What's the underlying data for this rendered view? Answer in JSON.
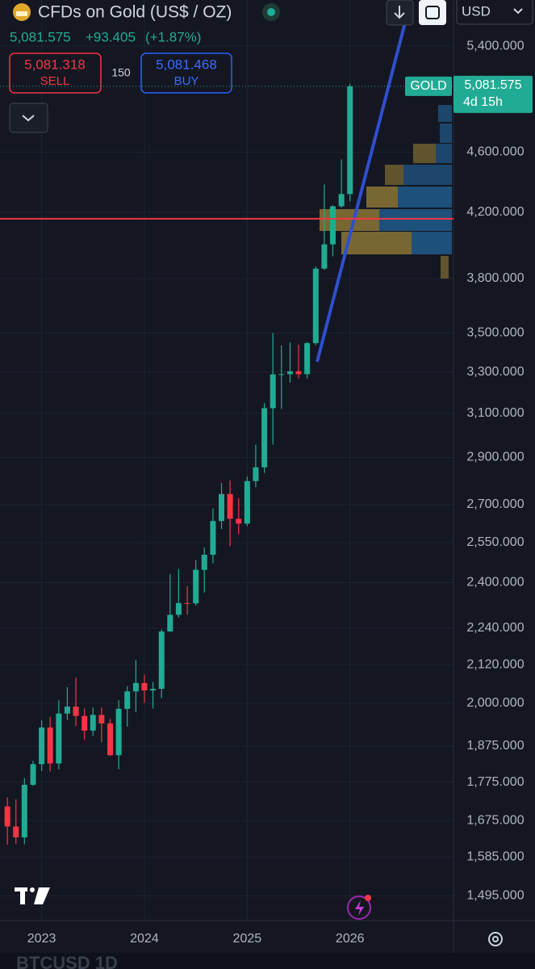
{
  "chart_data": {
    "type": "candlestick",
    "title": "CFDs on Gold (US$ / OZ)",
    "log_scale": true,
    "grid": true,
    "up_color": "#22ab94",
    "down_color": "#f23645",
    "x": [
      2022.667,
      2022.75,
      2022.833,
      2022.917,
      2023,
      2023.083,
      2023.167,
      2023.25,
      2023.333,
      2023.417,
      2023.5,
      2023.583,
      2023.667,
      2023.75,
      2023.833,
      2023.917,
      2024,
      2024.083,
      2024.167,
      2024.25,
      2024.333,
      2024.417,
      2024.5,
      2024.583,
      2024.667,
      2024.75,
      2024.833,
      2024.917,
      2025,
      2025.083,
      2025.167,
      2025.25,
      2025.333,
      2025.417,
      2025.5,
      2025.583,
      2025.667,
      2025.75,
      2025.833,
      2025.917,
      2026
    ],
    "open": [
      1711,
      1660,
      1633,
      1768,
      1824,
      1928,
      1826,
      1969,
      1990,
      1962,
      1919,
      1965,
      1940,
      1849,
      1983,
      2036,
      2062,
      2039,
      2044,
      2229,
      2286,
      2327,
      2326,
      2447,
      2503,
      2634,
      2744,
      2643,
      2624,
      2798,
      2857,
      3124,
      3288,
      3289,
      3303,
      3289,
      3447,
      3858,
      4002,
      4239,
      4318
    ],
    "high": [
      1735,
      1730,
      1786,
      1833,
      1949,
      1960,
      2009,
      2049,
      2079,
      1984,
      1987,
      1987,
      1953,
      2009,
      2052,
      2135,
      2088,
      2065,
      2236,
      2431,
      2450,
      2387,
      2483,
      2531,
      2685,
      2790,
      2801,
      2726,
      2817,
      2956,
      3148,
      3500,
      3435,
      3451,
      3439,
      3453,
      3871,
      4381,
      4245,
      4550,
      5100
    ],
    "low": [
      1615,
      1617,
      1616,
      1765,
      1805,
      1804,
      1810,
      1950,
      1932,
      1893,
      1903,
      1885,
      1846,
      1810,
      1931,
      1973,
      2001,
      1984,
      2016,
      2228,
      2277,
      2286,
      2318,
      2364,
      2471,
      2603,
      2536,
      2583,
      2614,
      2772,
      2833,
      2957,
      3121,
      3247,
      3268,
      3268,
      3436,
      3850,
      3930,
      4230,
      4270
    ],
    "close": [
      1660,
      1633,
      1768,
      1824,
      1928,
      1826,
      1969,
      1990,
      1962,
      1919,
      1965,
      1940,
      1849,
      1983,
      2036,
      2062,
      2039,
      2044,
      2229,
      2286,
      2327,
      2326,
      2447,
      2503,
      2634,
      2744,
      2643,
      2624,
      2798,
      2857,
      3124,
      3288,
      3289,
      3303,
      3289,
      3447,
      3858,
      4002,
      4239,
      4318,
      5081.575
    ],
    "xlim": [
      2022.595,
      2027.007
    ],
    "xticks": [
      2023,
      2024,
      2025,
      2026
    ],
    "ylim": [
      1440,
      5790
    ],
    "yticks": [
      {
        "value": 1495,
        "label": "1,495.000"
      },
      {
        "value": 1585,
        "label": "1,585.000"
      },
      {
        "value": 1675,
        "label": "1,675.000"
      },
      {
        "value": 1775,
        "label": "1,775.000"
      },
      {
        "value": 1875,
        "label": "1,875.000"
      },
      {
        "value": 2000,
        "label": "2,000.000"
      },
      {
        "value": 2120,
        "label": "2,120.000"
      },
      {
        "value": 2240,
        "label": "2,240.000"
      },
      {
        "value": 2400,
        "label": "2,400.000"
      },
      {
        "value": 2550,
        "label": "2,550.000"
      },
      {
        "value": 2700,
        "label": "2,700.000"
      },
      {
        "value": 2900,
        "label": "2,900.000"
      },
      {
        "value": 3100,
        "label": "3,100.000"
      },
      {
        "value": 3300,
        "label": "3,300.000"
      },
      {
        "value": 3500,
        "label": "3,500.000"
      },
      {
        "value": 3800,
        "label": "3,800.000"
      },
      {
        "value": 4200,
        "label": "4,200.000"
      },
      {
        "value": 4600,
        "label": "4,600.000"
      },
      {
        "value": 5400,
        "label": "5,400.000"
      }
    ],
    "reference_line": {
      "value": 4160,
      "color": "#f23645"
    },
    "quote": {
      "last": "5,081.575",
      "change": "+93.405",
      "change_pct": "(+1.87%)",
      "sell_price": "5,081.318",
      "sell": "SELL",
      "spread": "150",
      "buy_price": "5,081.468",
      "buy": "BUY",
      "currency": "USD",
      "symbol_tag": "GOLD",
      "countdown": "4d 15h"
    },
    "footer": "BTCUSD   1D"
  }
}
